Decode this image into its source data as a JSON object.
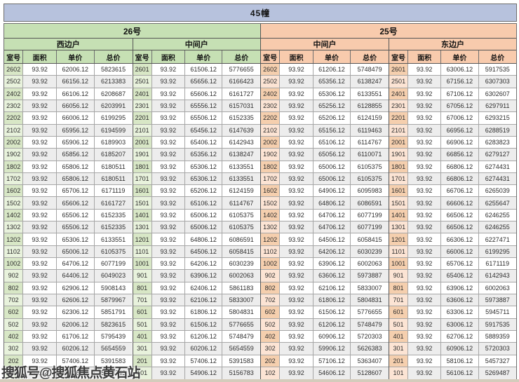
{
  "title": "45幢",
  "watermark": "搜狐号@搜狐焦点黄石站",
  "columns": [
    "室号",
    "面积",
    "单价",
    "总价"
  ],
  "colors": {
    "title_bar": "#b7c2dd",
    "building_26_header": "#c6e0b4",
    "building_25_header": "#f8cbad",
    "alt_row": "#ededed",
    "bottom_strip": "#d4ccbc"
  },
  "sections": [
    {
      "label": "26号",
      "groups": [
        {
          "label": "西边户",
          "rows": [
            [
              "2602",
              "93.92",
              "62006.12",
              "5823615"
            ],
            [
              "2502",
              "93.92",
              "66156.12",
              "6213383"
            ],
            [
              "2402",
              "93.92",
              "66106.12",
              "6208687"
            ],
            [
              "2302",
              "93.92",
              "66056.12",
              "6203991"
            ],
            [
              "2202",
              "93.92",
              "66006.12",
              "6199295"
            ],
            [
              "2102",
              "93.92",
              "65956.12",
              "6194599"
            ],
            [
              "2002",
              "93.92",
              "65906.12",
              "6189903"
            ],
            [
              "1902",
              "93.92",
              "65856.12",
              "6185207"
            ],
            [
              "1802",
              "93.92",
              "65806.12",
              "6180511"
            ],
            [
              "1702",
              "93.92",
              "65806.12",
              "6180511"
            ],
            [
              "1602",
              "93.92",
              "65706.12",
              "6171119"
            ],
            [
              "1502",
              "93.92",
              "65606.12",
              "6161727"
            ],
            [
              "1402",
              "93.92",
              "65506.12",
              "6152335"
            ],
            [
              "1302",
              "93.92",
              "65506.12",
              "6152335"
            ],
            [
              "1202",
              "93.92",
              "65306.12",
              "6133551"
            ],
            [
              "1102",
              "93.92",
              "65006.12",
              "6105375"
            ],
            [
              "1002",
              "93.92",
              "64706.12",
              "6077199"
            ],
            [
              "902",
              "93.92",
              "64406.12",
              "6049023"
            ],
            [
              "802",
              "93.92",
              "62906.12",
              "5908143"
            ],
            [
              "702",
              "93.92",
              "62606.12",
              "5879967"
            ],
            [
              "602",
              "93.92",
              "62306.12",
              "5851791"
            ],
            [
              "502",
              "93.92",
              "62006.12",
              "5823615"
            ],
            [
              "402",
              "93.92",
              "61706.12",
              "5795439"
            ],
            [
              "302",
              "93.92",
              "60206.12",
              "5654559"
            ],
            [
              "202",
              "93.92",
              "57406.12",
              "5391583"
            ],
            [
              "102",
              "93.92",
              "55406.12",
              "5203743"
            ]
          ]
        },
        {
          "label": "中间户",
          "rows": [
            [
              "2601",
              "93.92",
              "61506.12",
              "5776655"
            ],
            [
              "2501",
              "93.92",
              "65656.12",
              "6166423"
            ],
            [
              "2401",
              "93.92",
              "65606.12",
              "6161727"
            ],
            [
              "2301",
              "93.92",
              "65556.12",
              "6157031"
            ],
            [
              "2201",
              "93.92",
              "65506.12",
              "6152335"
            ],
            [
              "2101",
              "93.92",
              "65456.12",
              "6147639"
            ],
            [
              "2001",
              "93.92",
              "65406.12",
              "6142943"
            ],
            [
              "1901",
              "93.92",
              "65356.12",
              "6138247"
            ],
            [
              "1801",
              "93.92",
              "65306.12",
              "6133551"
            ],
            [
              "1701",
              "93.92",
              "65306.12",
              "6133551"
            ],
            [
              "1601",
              "93.92",
              "65206.12",
              "6124159"
            ],
            [
              "1501",
              "93.92",
              "65106.12",
              "6114767"
            ],
            [
              "1401",
              "93.92",
              "65006.12",
              "6105375"
            ],
            [
              "1301",
              "93.92",
              "65006.12",
              "6105375"
            ],
            [
              "1201",
              "93.92",
              "64806.12",
              "6086591"
            ],
            [
              "1101",
              "93.92",
              "64506.12",
              "6058415"
            ],
            [
              "1001",
              "93.92",
              "64206.12",
              "6030239"
            ],
            [
              "901",
              "93.92",
              "63906.12",
              "6002063"
            ],
            [
              "801",
              "93.92",
              "62406.12",
              "5861183"
            ],
            [
              "701",
              "93.92",
              "62106.12",
              "5833007"
            ],
            [
              "601",
              "93.92",
              "61806.12",
              "5804831"
            ],
            [
              "501",
              "93.92",
              "61506.12",
              "5776655"
            ],
            [
              "401",
              "93.92",
              "61206.12",
              "5748479"
            ],
            [
              "301",
              "93.92",
              "60206.12",
              "5654559"
            ],
            [
              "201",
              "93.92",
              "57406.12",
              "5391583"
            ],
            [
              "101",
              "93.92",
              "54906.12",
              "5156783"
            ]
          ]
        }
      ]
    },
    {
      "label": "25号",
      "groups": [
        {
          "label": "中间户",
          "rows": [
            [
              "2602",
              "93.92",
              "61206.12",
              "5748479"
            ],
            [
              "2502",
              "93.92",
              "65356.12",
              "6138247"
            ],
            [
              "2402",
              "93.92",
              "65306.12",
              "6133551"
            ],
            [
              "2302",
              "93.92",
              "65256.12",
              "6128855"
            ],
            [
              "2202",
              "93.92",
              "65206.12",
              "6124159"
            ],
            [
              "2102",
              "93.92",
              "65156.12",
              "6119463"
            ],
            [
              "2002",
              "93.92",
              "65106.12",
              "6114767"
            ],
            [
              "1902",
              "93.92",
              "65056.12",
              "6110071"
            ],
            [
              "1802",
              "93.92",
              "65006.12",
              "6105375"
            ],
            [
              "1702",
              "93.92",
              "65006.12",
              "6105375"
            ],
            [
              "1602",
              "93.92",
              "64906.12",
              "6095983"
            ],
            [
              "1502",
              "93.92",
              "64806.12",
              "6086591"
            ],
            [
              "1402",
              "93.92",
              "64706.12",
              "6077199"
            ],
            [
              "1302",
              "93.92",
              "64706.12",
              "6077199"
            ],
            [
              "1202",
              "93.92",
              "64506.12",
              "6058415"
            ],
            [
              "1102",
              "93.92",
              "64206.12",
              "6030239"
            ],
            [
              "1002",
              "93.92",
              "63906.12",
              "6002063"
            ],
            [
              "902",
              "93.92",
              "63606.12",
              "5973887"
            ],
            [
              "802",
              "93.92",
              "62106.12",
              "5833007"
            ],
            [
              "702",
              "93.92",
              "61806.12",
              "5804831"
            ],
            [
              "602",
              "93.92",
              "61506.12",
              "5776655"
            ],
            [
              "502",
              "93.92",
              "61206.12",
              "5748479"
            ],
            [
              "402",
              "93.92",
              "60906.12",
              "5720303"
            ],
            [
              "302",
              "93.92",
              "59906.12",
              "5626383"
            ],
            [
              "202",
              "93.92",
              "57106.12",
              "5363407"
            ],
            [
              "102",
              "93.92",
              "54606.12",
              "5128607"
            ]
          ]
        },
        {
          "label": "东边户",
          "rows": [
            [
              "2601",
              "93.92",
              "63006.12",
              "5917535"
            ],
            [
              "2501",
              "93.92",
              "67156.12",
              "6307303"
            ],
            [
              "2401",
              "93.92",
              "67106.12",
              "6302607"
            ],
            [
              "2301",
              "93.92",
              "67056.12",
              "6297911"
            ],
            [
              "2201",
              "93.92",
              "67006.12",
              "6293215"
            ],
            [
              "2101",
              "93.92",
              "66956.12",
              "6288519"
            ],
            [
              "2001",
              "93.92",
              "66906.12",
              "6283823"
            ],
            [
              "1901",
              "93.92",
              "66856.12",
              "6279127"
            ],
            [
              "1801",
              "93.92",
              "66806.12",
              "6274431"
            ],
            [
              "1701",
              "93.92",
              "66806.12",
              "6274431"
            ],
            [
              "1601",
              "93.92",
              "66706.12",
              "6265039"
            ],
            [
              "1501",
              "93.92",
              "66606.12",
              "6255647"
            ],
            [
              "1401",
              "93.92",
              "66506.12",
              "6246255"
            ],
            [
              "1301",
              "93.92",
              "66506.12",
              "6246255"
            ],
            [
              "1201",
              "93.92",
              "66306.12",
              "6227471"
            ],
            [
              "1101",
              "93.92",
              "66006.12",
              "6199295"
            ],
            [
              "1001",
              "93.92",
              "65706.12",
              "6171119"
            ],
            [
              "901",
              "93.92",
              "65406.12",
              "6142943"
            ],
            [
              "801",
              "93.92",
              "63906.12",
              "6002063"
            ],
            [
              "701",
              "93.92",
              "63606.12",
              "5973887"
            ],
            [
              "601",
              "93.92",
              "63306.12",
              "5945711"
            ],
            [
              "501",
              "93.92",
              "63006.12",
              "5917535"
            ],
            [
              "401",
              "93.92",
              "62706.12",
              "5889359"
            ],
            [
              "301",
              "93.92",
              "60906.12",
              "5720303"
            ],
            [
              "201",
              "93.92",
              "58106.12",
              "5457327"
            ],
            [
              "101",
              "93.92",
              "56106.12",
              "5269487"
            ]
          ]
        }
      ]
    }
  ]
}
